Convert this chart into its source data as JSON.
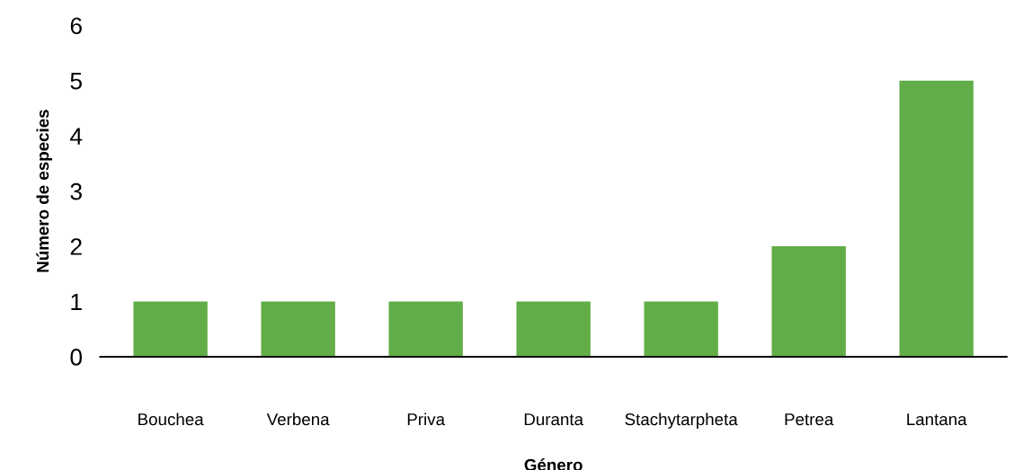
{
  "chart_data": {
    "type": "bar",
    "xlabel": "Género",
    "ylabel": "Número de especies",
    "categories": [
      "Bouchea",
      "Verbena",
      "Priva",
      "Duranta",
      "Stachytarpheta",
      "Petrea",
      "Lantana"
    ],
    "values": [
      1,
      1,
      1,
      1,
      1,
      2,
      5
    ],
    "color": "#62ad47",
    "ylim": [
      0,
      6
    ],
    "yticks": [
      0,
      1,
      2,
      3,
      4,
      5,
      6
    ],
    "grid": false,
    "legend": false
  }
}
